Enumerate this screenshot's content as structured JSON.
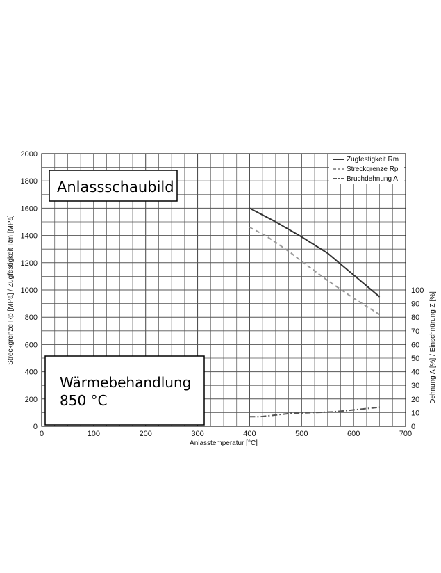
{
  "chart_data": {
    "type": "line",
    "title": "Anlassschaubild",
    "annotation_lines": [
      "Wärmebehandlung",
      "850 °C"
    ],
    "xlabel": "Anlasstemperatur [°C]",
    "ylabel": "Streckgrenze Rp [MPa] / Zugfestigkeit Rm [MPa]",
    "y2label": "Dehnung A [%] / Einschnürung Z [%]",
    "xlim": [
      0,
      700
    ],
    "ylim": [
      0,
      2000
    ],
    "y2lim": [
      0,
      100
    ],
    "x_ticks": [
      "0",
      "100",
      "200",
      "300",
      "400",
      "500",
      "600",
      "700"
    ],
    "y_ticks": [
      "0",
      "200",
      "400",
      "600",
      "800",
      "1000",
      "1200",
      "1400",
      "1600",
      "1800",
      "2000"
    ],
    "y2_ticks": [
      "0",
      "10",
      "20",
      "30",
      "40",
      "50",
      "60",
      "70",
      "80",
      "90",
      "100"
    ],
    "grid": true,
    "legend_position": "top-right",
    "series": [
      {
        "name": "Zugfestigkeit Rm",
        "axis": "left",
        "color": "#333333",
        "dash": "solid",
        "x": [
          400,
          450,
          500,
          550,
          600,
          650
        ],
        "y": [
          1600,
          1500,
          1390,
          1270,
          1110,
          950
        ]
      },
      {
        "name": "Streckgrenze Rp",
        "axis": "left",
        "color": "#999999",
        "dash": "dashed",
        "x": [
          400,
          430,
          450,
          480,
          500,
          550,
          600,
          650
        ],
        "y": [
          1460,
          1400,
          1350,
          1270,
          1210,
          1070,
          940,
          820
        ]
      },
      {
        "name": "Bruchdehnung A",
        "axis": "right",
        "color": "#555555",
        "dash": "dashdot",
        "x": [
          400,
          420,
          480,
          520,
          560,
          600,
          650
        ],
        "y": [
          7,
          7,
          9.5,
          10,
          10.5,
          12,
          14
        ]
      }
    ]
  }
}
